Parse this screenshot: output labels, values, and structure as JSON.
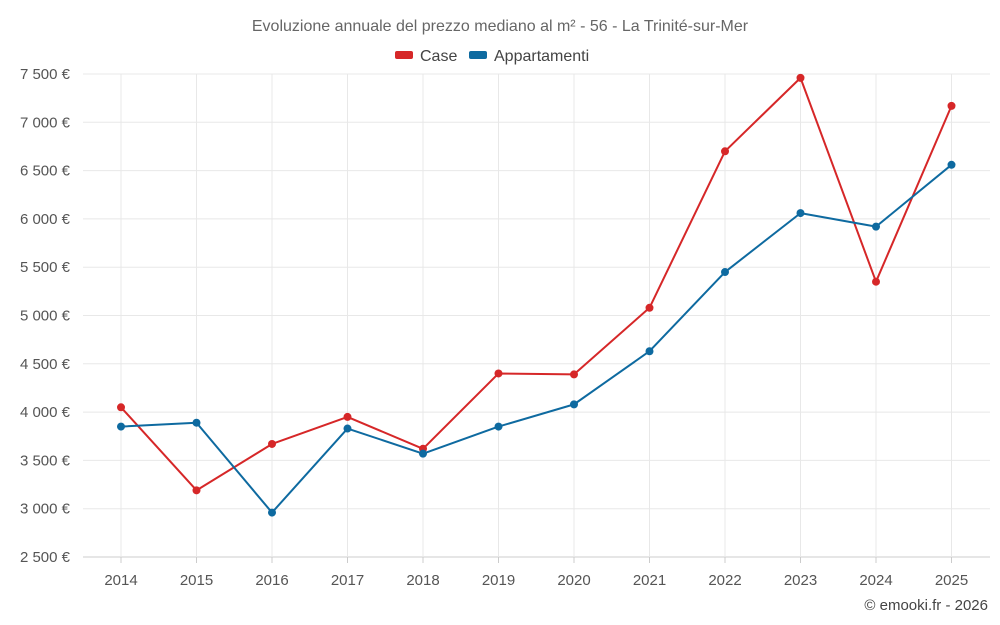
{
  "chart_data": {
    "type": "line",
    "title": "Evoluzione annuale del prezzo mediano al m² - 56 - La Trinité-sur-Mer",
    "categories": [
      "2014",
      "2015",
      "2016",
      "2017",
      "2018",
      "2019",
      "2020",
      "2021",
      "2022",
      "2023",
      "2024",
      "2025"
    ],
    "series": [
      {
        "name": "Case",
        "color": "#d62728",
        "values": [
          4050,
          3190,
          3670,
          3950,
          3620,
          4400,
          4390,
          5080,
          6700,
          7460,
          5350,
          7170
        ]
      },
      {
        "name": "Appartamenti",
        "color": "#0e6aa0",
        "values": [
          3850,
          3890,
          2960,
          3830,
          3570,
          3850,
          4080,
          4630,
          5450,
          6060,
          5920,
          6560
        ]
      }
    ],
    "ylim": [
      2500,
      7500
    ],
    "yticks": [
      2500,
      3000,
      3500,
      4000,
      4500,
      5000,
      5500,
      6000,
      6500,
      7000,
      7500
    ],
    "ytick_labels": [
      "2 500 €",
      "3 000 €",
      "3 500 €",
      "4 000 €",
      "4 500 €",
      "5 000 €",
      "5 500 €",
      "6 000 €",
      "6 500 €",
      "7 000 €",
      "7 500 €"
    ],
    "xlabel": "",
    "ylabel": "",
    "grid": true,
    "legend_position": "top-center"
  },
  "credit": "© emooki.fr - 2026"
}
